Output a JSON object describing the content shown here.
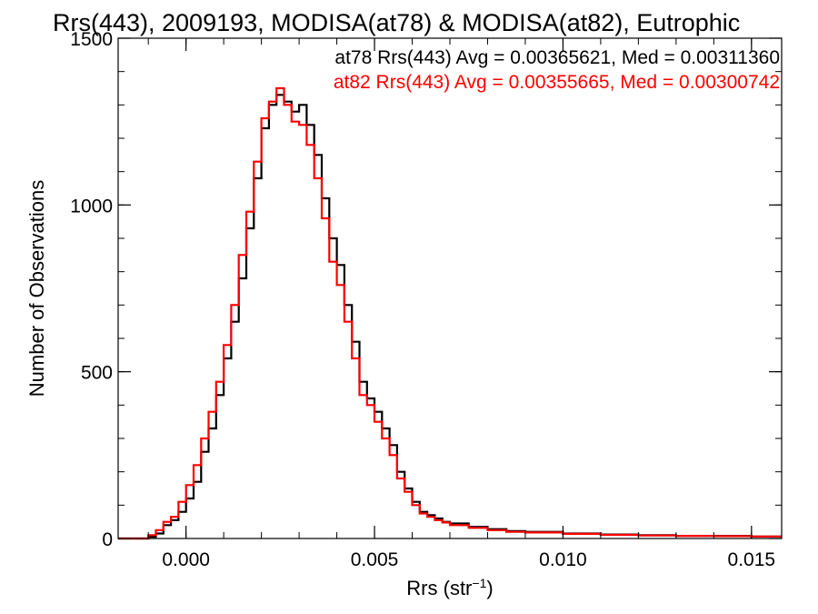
{
  "chart_data": {
    "type": "line",
    "title": "Rrs(443), 2009193, MODISA(at78) & MODISA(at82), Eutrophic",
    "xlabel": {
      "prefix": "Rrs (str",
      "sup": "−1",
      "suffix": ")"
    },
    "ylabel": "Number of Observations",
    "xlim": [
      -0.0018,
      0.0158
    ],
    "ylim": [
      0,
      1500
    ],
    "x_ticks": [
      {
        "value": 0.0,
        "label": "0.000"
      },
      {
        "value": 0.005,
        "label": "0.005"
      },
      {
        "value": 0.01,
        "label": "0.010"
      },
      {
        "value": 0.015,
        "label": "0.015"
      }
    ],
    "y_ticks": [
      {
        "value": 0,
        "label": "0"
      },
      {
        "value": 500,
        "label": "500"
      },
      {
        "value": 1000,
        "label": "1000"
      },
      {
        "value": 1500,
        "label": "1500"
      }
    ],
    "annotations": [
      {
        "text": "at78 Rrs(443) Avg = 0.00365621, Med = 0.00311360",
        "color": "#000000"
      },
      {
        "text": "at82 Rrs(443) Avg = 0.00355665, Med = 0.00300742",
        "color": "#ff0000"
      }
    ],
    "series": [
      {
        "color": "#000000",
        "x": [
          -0.0018,
          -0.0012,
          -0.001,
          -0.0008,
          -0.0006,
          -0.0004,
          -0.0002,
          0.0,
          0.0002,
          0.0004,
          0.0006,
          0.0008,
          0.001,
          0.0012,
          0.0014,
          0.0016,
          0.0018,
          0.002,
          0.0022,
          0.0024,
          0.0026,
          0.0028,
          0.003,
          0.0032,
          0.0034,
          0.0036,
          0.0038,
          0.004,
          0.0042,
          0.0044,
          0.0046,
          0.0048,
          0.005,
          0.0052,
          0.0054,
          0.0056,
          0.0058,
          0.006,
          0.0062,
          0.0064,
          0.0066,
          0.0068,
          0.007,
          0.0075,
          0.008,
          0.0085,
          0.009,
          0.01,
          0.011,
          0.012,
          0.013,
          0.014,
          0.015,
          0.0158
        ],
        "y": [
          0,
          0,
          5,
          15,
          40,
          55,
          80,
          120,
          170,
          260,
          330,
          430,
          540,
          650,
          780,
          930,
          1080,
          1230,
          1300,
          1330,
          1310,
          1280,
          1300,
          1240,
          1150,
          1020,
          900,
          820,
          700,
          590,
          470,
          420,
          380,
          330,
          280,
          200,
          150,
          110,
          80,
          70,
          60,
          50,
          45,
          35,
          28,
          22,
          20,
          15,
          12,
          10,
          8,
          8,
          6,
          6
        ]
      },
      {
        "color": "#ff0000",
        "x": [
          -0.0018,
          -0.0012,
          -0.001,
          -0.0008,
          -0.0006,
          -0.0004,
          -0.0002,
          0.0,
          0.0002,
          0.0004,
          0.0006,
          0.0008,
          0.001,
          0.0012,
          0.0014,
          0.0016,
          0.0018,
          0.002,
          0.0022,
          0.0024,
          0.0026,
          0.0028,
          0.003,
          0.0032,
          0.0034,
          0.0036,
          0.0038,
          0.004,
          0.0042,
          0.0044,
          0.0046,
          0.0048,
          0.005,
          0.0052,
          0.0054,
          0.0056,
          0.0058,
          0.006,
          0.0062,
          0.0064,
          0.0066,
          0.0068,
          0.007,
          0.0075,
          0.008,
          0.0085,
          0.009,
          0.01,
          0.011,
          0.012,
          0.013,
          0.014,
          0.015,
          0.0158
        ],
        "y": [
          0,
          0,
          10,
          25,
          50,
          65,
          110,
          160,
          220,
          300,
          380,
          470,
          580,
          700,
          850,
          980,
          1130,
          1260,
          1310,
          1350,
          1300,
          1250,
          1240,
          1180,
          1080,
          960,
          830,
          760,
          650,
          540,
          430,
          400,
          350,
          300,
          250,
          180,
          140,
          100,
          75,
          65,
          55,
          48,
          40,
          32,
          25,
          20,
          18,
          14,
          11,
          9,
          8,
          7,
          6,
          6
        ]
      }
    ]
  }
}
